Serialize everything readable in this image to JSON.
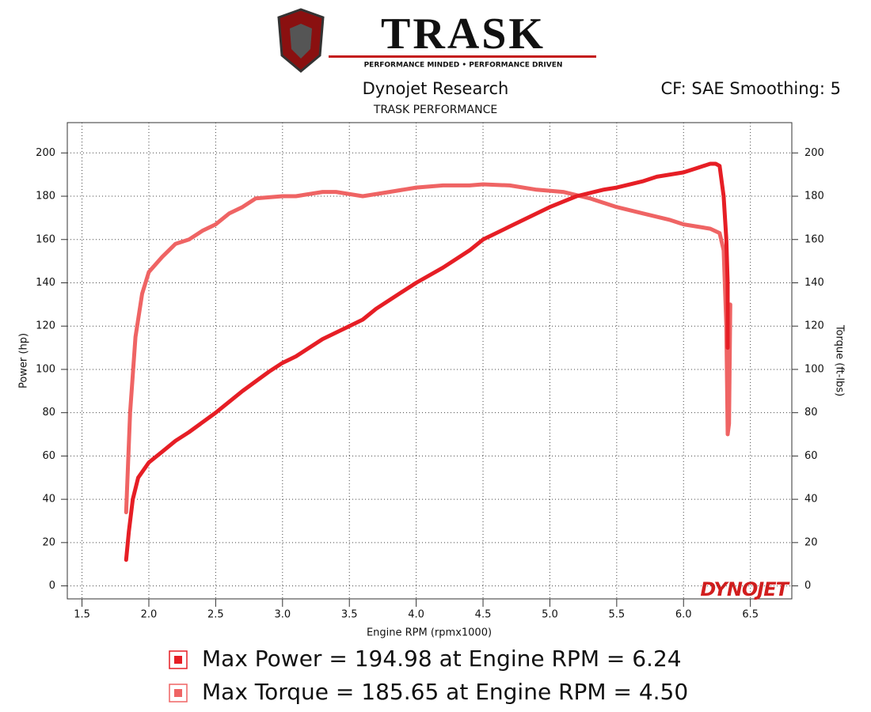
{
  "chart_data": {
    "type": "line",
    "logo_title": "TRASK",
    "logo_tagline": "PERFORMANCE MINDED • PERFORMANCE DRIVEN",
    "title": "Dynojet Research",
    "subtitle": "TRASK PERFORMANCE",
    "annotation": "CF: SAE Smoothing: 5",
    "watermark": "DYNOJET",
    "x_label": "Engine RPM (rpmx1000)",
    "y_label": "Power (hp)",
    "y2_label": "Torque (ft-lbs)",
    "xlim": [
      1.39,
      6.81
    ],
    "ylim": [
      -6,
      214
    ],
    "y2lim": [
      -6,
      214
    ],
    "xticks": [
      1.5,
      {
        "value": 2,
        "label": "2.0"
      },
      2.5,
      {
        "value": 3,
        "label": "3.0"
      },
      3.5,
      {
        "value": 4,
        "label": "4.0"
      },
      4.5,
      {
        "value": 5,
        "label": "5.0"
      },
      5.5,
      {
        "value": 6,
        "label": "6.0"
      },
      6.5
    ],
    "yticks": [
      0,
      20,
      40,
      60,
      80,
      100,
      120,
      140,
      160,
      180,
      200
    ],
    "y2ticks": [
      0,
      20,
      40,
      60,
      80,
      100,
      120,
      140,
      160,
      180,
      200
    ],
    "grid": true,
    "series": [
      {
        "name": "Max Power = 194.98 at Engine RPM = 6.24",
        "color": "#e61e25",
        "x": [
          1.83,
          1.85,
          1.88,
          1.92,
          2.0,
          2.1,
          2.2,
          2.3,
          2.5,
          2.7,
          2.9,
          3.0,
          3.1,
          3.3,
          3.5,
          3.6,
          3.7,
          3.9,
          4.0,
          4.2,
          4.4,
          4.5,
          4.7,
          4.9,
          5.0,
          5.2,
          5.4,
          5.5,
          5.7,
          5.8,
          6.0,
          6.1,
          6.2,
          6.24,
          6.27,
          6.3,
          6.32,
          6.33,
          6.33
        ],
        "values": [
          12,
          25,
          40,
          50,
          57,
          62,
          67,
          71,
          80,
          90,
          99,
          103,
          106,
          114,
          120,
          123,
          128,
          136,
          140,
          147,
          155,
          160,
          166,
          172,
          175,
          180,
          183,
          184,
          187,
          189,
          191,
          193,
          195,
          195,
          194,
          180,
          160,
          140,
          110
        ]
      },
      {
        "name": "Max Torque = 185.65 at Engine RPM = 4.50",
        "color": "#ef6464",
        "axis": "y2",
        "x": [
          1.83,
          1.86,
          1.9,
          1.95,
          2.0,
          2.1,
          2.2,
          2.3,
          2.4,
          2.5,
          2.6,
          2.7,
          2.8,
          3.0,
          3.1,
          3.3,
          3.4,
          3.6,
          3.8,
          4.0,
          4.2,
          4.4,
          4.5,
          4.7,
          4.9,
          5.1,
          5.3,
          5.5,
          5.7,
          5.9,
          6.0,
          6.2,
          6.27,
          6.3,
          6.32,
          6.33,
          6.34,
          6.35
        ],
        "values": [
          34,
          80,
          115,
          135,
          145,
          152,
          158,
          160,
          164,
          167,
          172,
          175,
          179,
          180,
          180,
          182,
          182,
          180,
          182,
          184,
          185,
          185,
          185.5,
          185,
          183,
          182,
          179,
          175,
          172,
          169,
          167,
          165,
          163,
          155,
          120,
          70,
          75,
          130
        ]
      }
    ]
  }
}
